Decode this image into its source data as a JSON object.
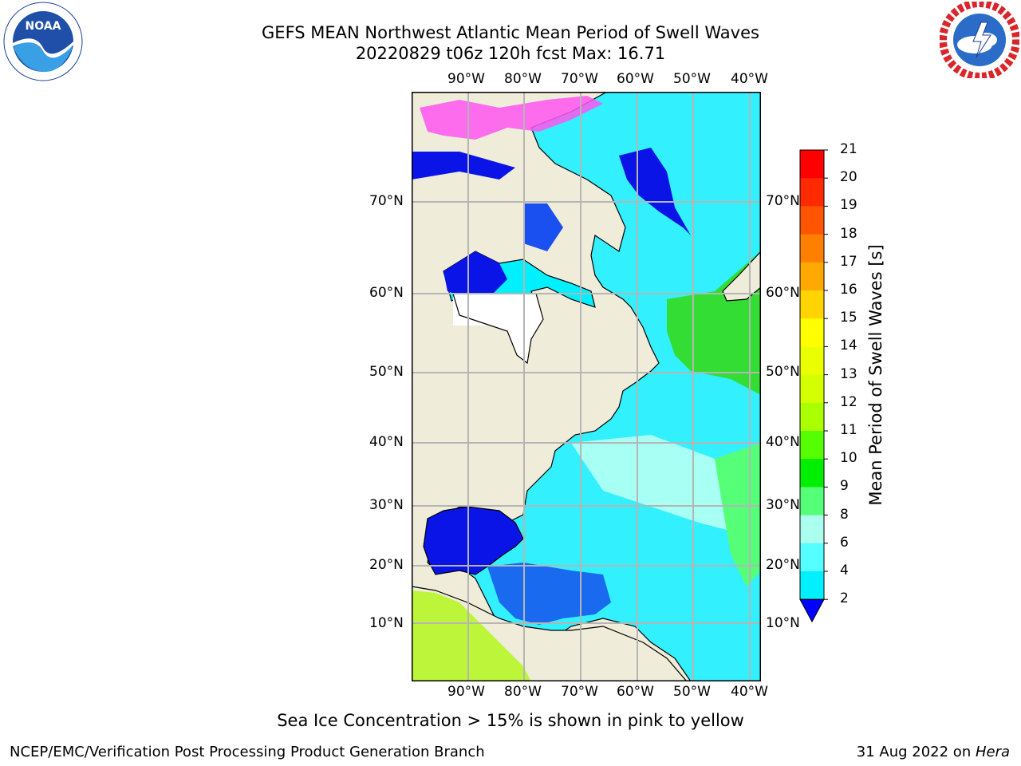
{
  "title": {
    "line1": "GEFS MEAN Northwest Atlantic Mean Period of Swell Waves",
    "line2": "20220829 t06z 120h fcst   Max: 16.71"
  },
  "map": {
    "lon_labels": [
      "90°W",
      "80°W",
      "70°W",
      "60°W",
      "50°W",
      "40°W"
    ],
    "lat_labels": [
      "70°N",
      "60°N",
      "50°N",
      "40°N",
      "30°N",
      "20°N",
      "10°N"
    ]
  },
  "colorbar": {
    "label": "Mean Period of Swell Waves [s]",
    "ticks": [
      "21",
      "20",
      "19",
      "18",
      "17",
      "16",
      "15",
      "14",
      "13",
      "12",
      "11",
      "10",
      "9",
      "8",
      "6",
      "4",
      "2"
    ],
    "colors": [
      "#ff0000",
      "#ff2a00",
      "#ff5500",
      "#ff7f00",
      "#ffa800",
      "#ffd400",
      "#ffff00",
      "#eaff00",
      "#d4ff00",
      "#aaff00",
      "#55ff00",
      "#00ee00",
      "#55ff77",
      "#aaffee",
      "#55ffff",
      "#00f0ff",
      "#0077ff"
    ],
    "under_color": "#0000ff"
  },
  "logos": {
    "noaa_text": "NOAA",
    "nws_text": "NATIONAL WEATHER SERVICE"
  },
  "note": "Sea Ice Concentration > 15% is shown in pink to yellow",
  "footer": {
    "left": "NCEP/EMC/Verification Post Processing Product Generation Branch",
    "right_prefix": "31 Aug 2022 on ",
    "right_host": "Hera"
  }
}
